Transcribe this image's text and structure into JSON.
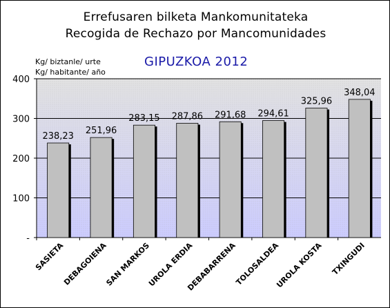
{
  "header": {
    "title_line1": "Errefusaren bilketa Mankomunitateka",
    "title_line2": "Recogida de Rechazo por Mancomunidades",
    "subtitle": "GIPUZKOA 2012",
    "unit_line1": "Kg/ biztanle/ urte",
    "unit_line2": "Kg/ habitante/ año"
  },
  "colors": {
    "bar_fill": "#c0c0c0",
    "bar_shadow": "#000000",
    "band_low": "#ccccff",
    "band_high": "#e2e2e2",
    "subtitle": "#1a1aa8"
  },
  "chart_data": {
    "type": "bar",
    "title": "Errefusaren bilketa Mankomunitateka / Recogida de Rechazo por Mancomunidades",
    "subtitle": "GIPUZKOA 2012",
    "ylabel": "Kg/ biztanle/ urte · Kg/ habitante/ año",
    "xlabel": "",
    "categories": [
      "SASIETA",
      "DEBAGOIENA",
      "SAN MARKOS",
      "UROLA ERDIA",
      "DEBABARRENA",
      "TOLOSALDEA",
      "UROLA KOSTA",
      "TXINGUDI"
    ],
    "values": [
      238.23,
      251.96,
      283.15,
      287.86,
      291.68,
      294.61,
      325.96,
      348.04
    ],
    "value_labels": [
      "238,23",
      "251,96",
      "283,15",
      "287,86",
      "291,68",
      "294,61",
      "325,96",
      "348,04"
    ],
    "ylim": [
      0,
      400
    ],
    "yticks": [
      0,
      100,
      200,
      300,
      400
    ],
    "ytick_labels": [
      "-",
      "100",
      "200",
      "300",
      "400"
    ],
    "grid": true,
    "legend": "none"
  }
}
